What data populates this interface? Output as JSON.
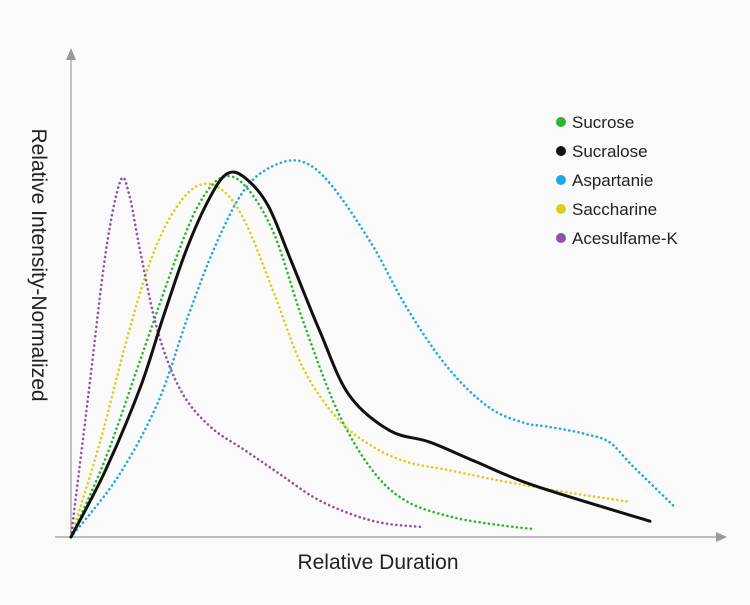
{
  "chart_data": {
    "type": "line",
    "title": "",
    "xlabel": "Relative Duration",
    "ylabel": "Relative Intensity-Normalized",
    "xlim": [
      0,
      100
    ],
    "ylim": [
      0,
      100
    ],
    "grid": false,
    "legend_position": "top-right",
    "series": [
      {
        "name": "Sucrose",
        "color": "#2db52d",
        "style": "dotted",
        "x": [
          0,
          6,
          12,
          18,
          22,
          26,
          30,
          35,
          40,
          46,
          52,
          58,
          66,
          74,
          80
        ],
        "y": [
          0,
          20,
          45,
          70,
          84,
          91,
          89,
          77,
          55,
          32,
          17,
          9,
          5,
          3,
          2
        ]
      },
      {
        "name": "Sucralose",
        "color": "#111111",
        "style": "solid",
        "x": [
          0,
          6,
          12,
          16,
          20,
          24,
          27,
          30,
          34,
          38,
          43,
          48,
          55,
          62,
          70,
          80,
          100
        ],
        "y": [
          0,
          17,
          38,
          56,
          73,
          86,
          92,
          91,
          84,
          70,
          52,
          36,
          27,
          24,
          19,
          13,
          4
        ]
      },
      {
        "name": "Aspartanie",
        "color": "#21a8e3",
        "style": "dotted",
        "x": [
          0,
          8,
          15,
          20,
          25,
          30,
          35,
          40,
          45,
          52,
          58,
          65,
          72,
          78,
          82,
          86,
          89,
          93,
          97,
          104
        ],
        "y": [
          0,
          15,
          34,
          55,
          74,
          88,
          94,
          95,
          89,
          74,
          58,
          43,
          33,
          29,
          28,
          27,
          26,
          24,
          18,
          8
        ]
      },
      {
        "name": "Saccharine",
        "color": "#d7d01f",
        "style": "dotted",
        "x": [
          0,
          5,
          10,
          14,
          18,
          22,
          26,
          30,
          35,
          40,
          46,
          52,
          58,
          65,
          75,
          87,
          96
        ],
        "y": [
          0,
          24,
          52,
          71,
          83,
          89,
          88,
          80,
          62,
          43,
          30,
          23,
          19,
          17,
          14,
          11,
          9
        ]
      },
      {
        "name": "Acesulfame-K",
        "color": "#8a55a8",
        "style": "dotted",
        "x": [
          0,
          3,
          6,
          8.5,
          10,
          12,
          15,
          19,
          24,
          30,
          36,
          42,
          48,
          54,
          61
        ],
        "y": [
          0,
          36,
          72,
          90,
          87,
          72,
          52,
          37,
          28,
          22,
          16,
          10,
          6,
          3.5,
          2.5
        ]
      }
    ]
  }
}
